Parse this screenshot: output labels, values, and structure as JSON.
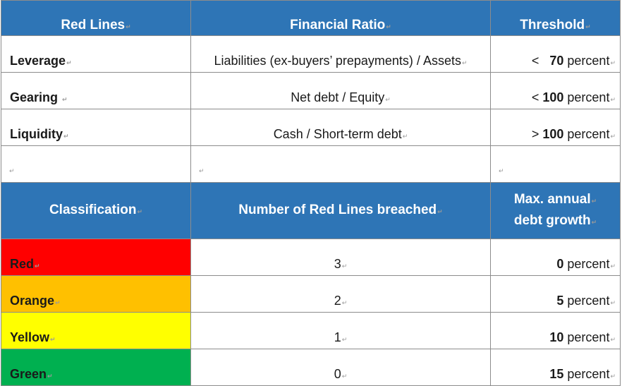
{
  "mark": "↵",
  "headers": {
    "red_lines": "Red Lines",
    "financial_ratio": "Financial Ratio",
    "threshold": "Threshold"
  },
  "red_lines": [
    {
      "name": "Leverage",
      "ratio": "Liabilities (ex-buyers’ prepayments) / Assets",
      "op": "<",
      "value": "70",
      "unit": "percent"
    },
    {
      "name": "Gearing",
      "ratio": "Net debt / Equity",
      "op": "<",
      "value": "100",
      "unit": "percent"
    },
    {
      "name": "Liquidity",
      "ratio": "Cash / Short-term debt",
      "op": ">",
      "value": "100",
      "unit": "percent"
    }
  ],
  "headers2": {
    "classification": "Classification",
    "breached": "Number of Red Lines breached",
    "growth_line1": "Max. annual",
    "growth_line2": "debt growth"
  },
  "classes": [
    {
      "name": "Red",
      "breached": "3",
      "growth": "0",
      "unit": "percent",
      "color": "#ff0000"
    },
    {
      "name": "Orange",
      "breached": "2",
      "growth": "5",
      "unit": "percent",
      "color": "#ffc000"
    },
    {
      "name": "Yellow",
      "breached": "1",
      "growth": "10",
      "unit": "percent",
      "color": "#ffff00"
    },
    {
      "name": "Green",
      "breached": "0",
      "growth": "15",
      "unit": "percent",
      "color": "#00b050"
    }
  ]
}
